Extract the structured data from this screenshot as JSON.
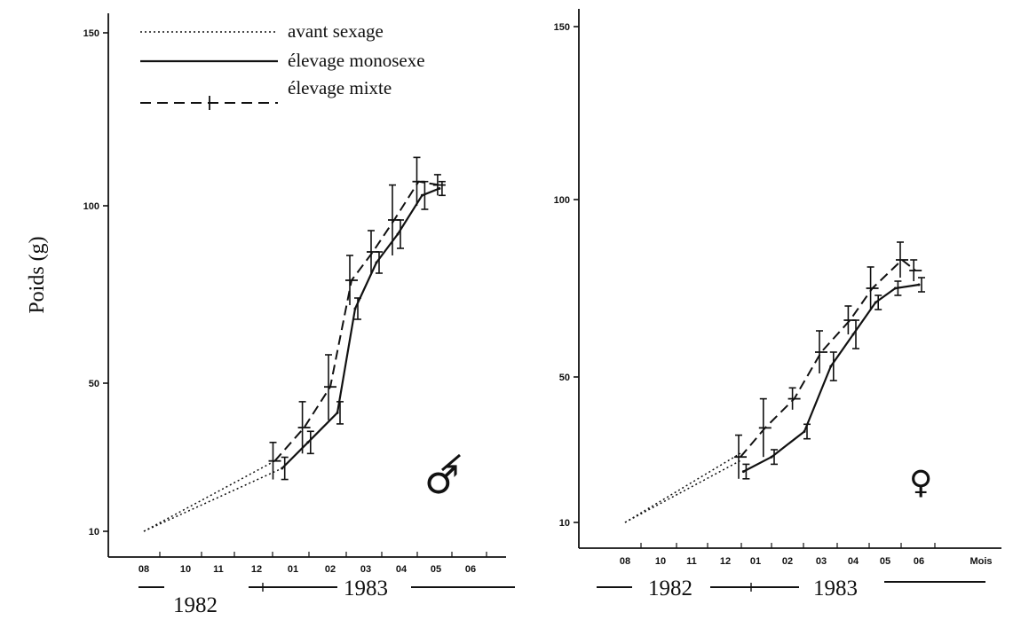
{
  "legend": {
    "items": [
      {
        "label": "avant sexage",
        "style": "dotted"
      },
      {
        "label": "élevage monosexe",
        "style": "solid"
      },
      {
        "label": "élevage mixte",
        "style": "dashed-cross"
      }
    ]
  },
  "ylabel": "Poids (g)",
  "colors": {
    "ink": "#111111",
    "background": "#ffffff"
  },
  "chart_data": [
    {
      "type": "line",
      "panel": "male",
      "symbol": "♂",
      "yticks": [
        "10",
        "50",
        "100",
        "150"
      ],
      "ylim": [
        10,
        150
      ],
      "xticks": [
        "08",
        "10",
        "11",
        "12",
        "01",
        "02",
        "03",
        "04",
        "05",
        "06"
      ],
      "years": [
        "1982",
        "1983"
      ],
      "xlabel": "",
      "grid": false,
      "series": [
        {
          "name": "avant sexage",
          "style": "dotted",
          "x": [
            8,
            12.5
          ],
          "y": [
            10,
            29
          ]
        },
        {
          "name": "avant sexage",
          "style": "dotted",
          "x": [
            8,
            12.7
          ],
          "y": [
            10,
            27
          ]
        },
        {
          "name": "élevage monosexe",
          "style": "solid",
          "x": [
            12.7,
            13.4,
            14.2,
            14.7,
            15.3,
            15.9,
            16.6,
            17.1
          ],
          "y": [
            27,
            34,
            42,
            71,
            84,
            92,
            103,
            105
          ],
          "err": [
            3,
            3,
            3,
            3,
            3,
            4,
            4,
            2
          ]
        },
        {
          "name": "élevage mixte",
          "style": "dashed-cross",
          "x": [
            12.5,
            13.3,
            14.0,
            14.6,
            15.2,
            15.8,
            16.5,
            17.1
          ],
          "y": [
            29,
            38,
            49,
            79,
            87,
            96,
            107,
            106
          ],
          "err": [
            5,
            7,
            9,
            7,
            6,
            10,
            7,
            3
          ]
        }
      ]
    },
    {
      "type": "line",
      "panel": "female",
      "symbol": "♀",
      "yticks": [
        "10",
        "50",
        "100",
        "150"
      ],
      "ylim": [
        10,
        150
      ],
      "xticks": [
        "08",
        "10",
        "11",
        "12",
        "01",
        "02",
        "03",
        "04",
        "05",
        "06",
        "Mois"
      ],
      "years": [
        "1982",
        "1983"
      ],
      "xlabel": "",
      "grid": false,
      "series": [
        {
          "name": "avant sexage",
          "style": "dotted",
          "x": [
            8,
            12.5
          ],
          "y": [
            10,
            29
          ]
        },
        {
          "name": "avant sexage",
          "style": "dotted",
          "x": [
            8,
            12.5
          ],
          "y": [
            10,
            27
          ]
        },
        {
          "name": "élevage monosexe",
          "style": "solid",
          "x": [
            12.6,
            13.5,
            14.5,
            15.3,
            16.0,
            16.7,
            17.3,
            18.0
          ],
          "y": [
            24,
            28,
            35,
            53,
            62,
            71,
            75,
            76
          ],
          "err": [
            2,
            2,
            2,
            4,
            4,
            2,
            2,
            2
          ]
        },
        {
          "name": "élevage mixte",
          "style": "dashed-cross",
          "x": [
            12.5,
            13.3,
            14.2,
            15.0,
            15.9,
            16.6,
            17.5,
            17.9
          ],
          "y": [
            28,
            36,
            44,
            57,
            66,
            75,
            83,
            80
          ],
          "err": [
            6,
            8,
            3,
            6,
            4,
            6,
            5,
            3
          ]
        }
      ]
    }
  ]
}
